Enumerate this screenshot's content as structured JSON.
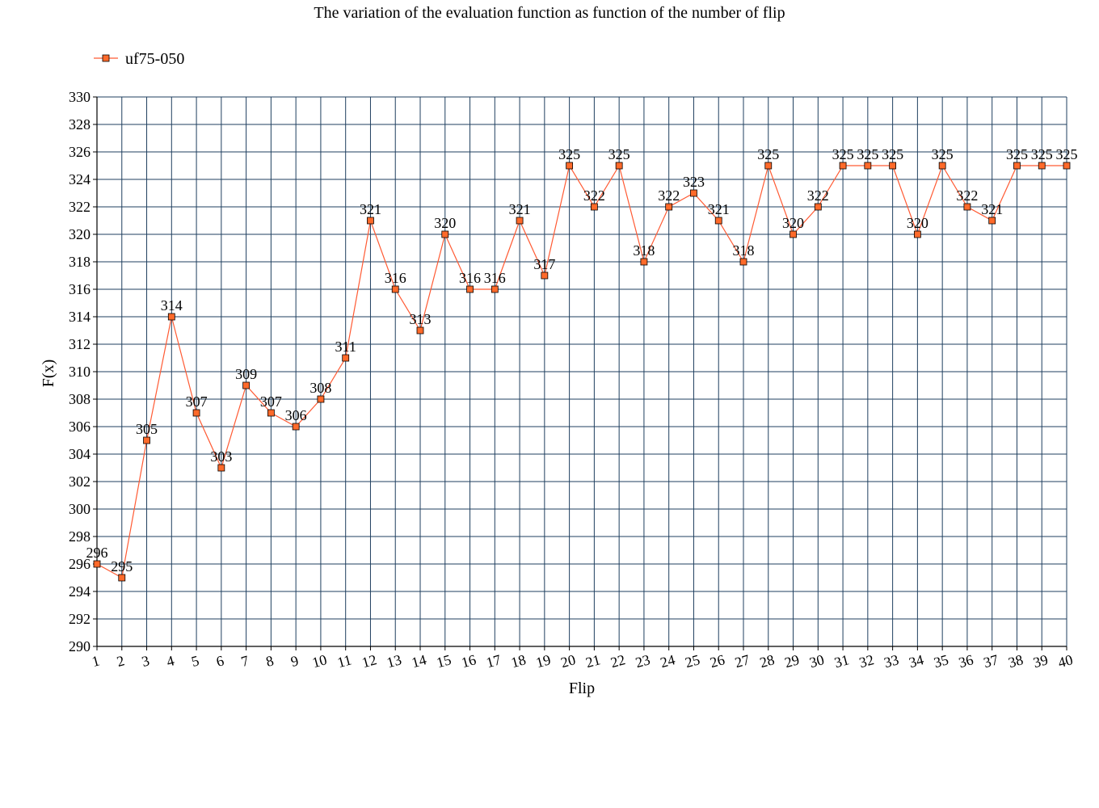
{
  "chart_data": {
    "type": "line",
    "title": "The variation of the evaluation function as function of the number of flip",
    "xlabel": "Flip",
    "ylabel": "F(x)",
    "ylim": [
      290,
      330
    ],
    "ytick_step": 2,
    "grid": true,
    "legend_position": "top-left",
    "x": [
      1,
      2,
      3,
      4,
      5,
      6,
      7,
      8,
      9,
      10,
      11,
      12,
      13,
      14,
      15,
      16,
      17,
      18,
      19,
      20,
      21,
      22,
      23,
      24,
      25,
      26,
      27,
      28,
      29,
      30,
      31,
      32,
      33,
      34,
      35,
      36,
      37,
      38,
      39,
      40
    ],
    "series": [
      {
        "name": "uf75-050",
        "color": "#ff5a33",
        "marker_fill": "#ff6a2a",
        "values": [
          296,
          295,
          305,
          314,
          307,
          303,
          309,
          307,
          306,
          308,
          311,
          321,
          316,
          313,
          320,
          316,
          316,
          321,
          317,
          325,
          322,
          325,
          318,
          322,
          323,
          321,
          318,
          325,
          320,
          322,
          325,
          325,
          325,
          320,
          325,
          322,
          321,
          325,
          325,
          325
        ]
      }
    ],
    "grid_color": "#1f3f5f"
  }
}
